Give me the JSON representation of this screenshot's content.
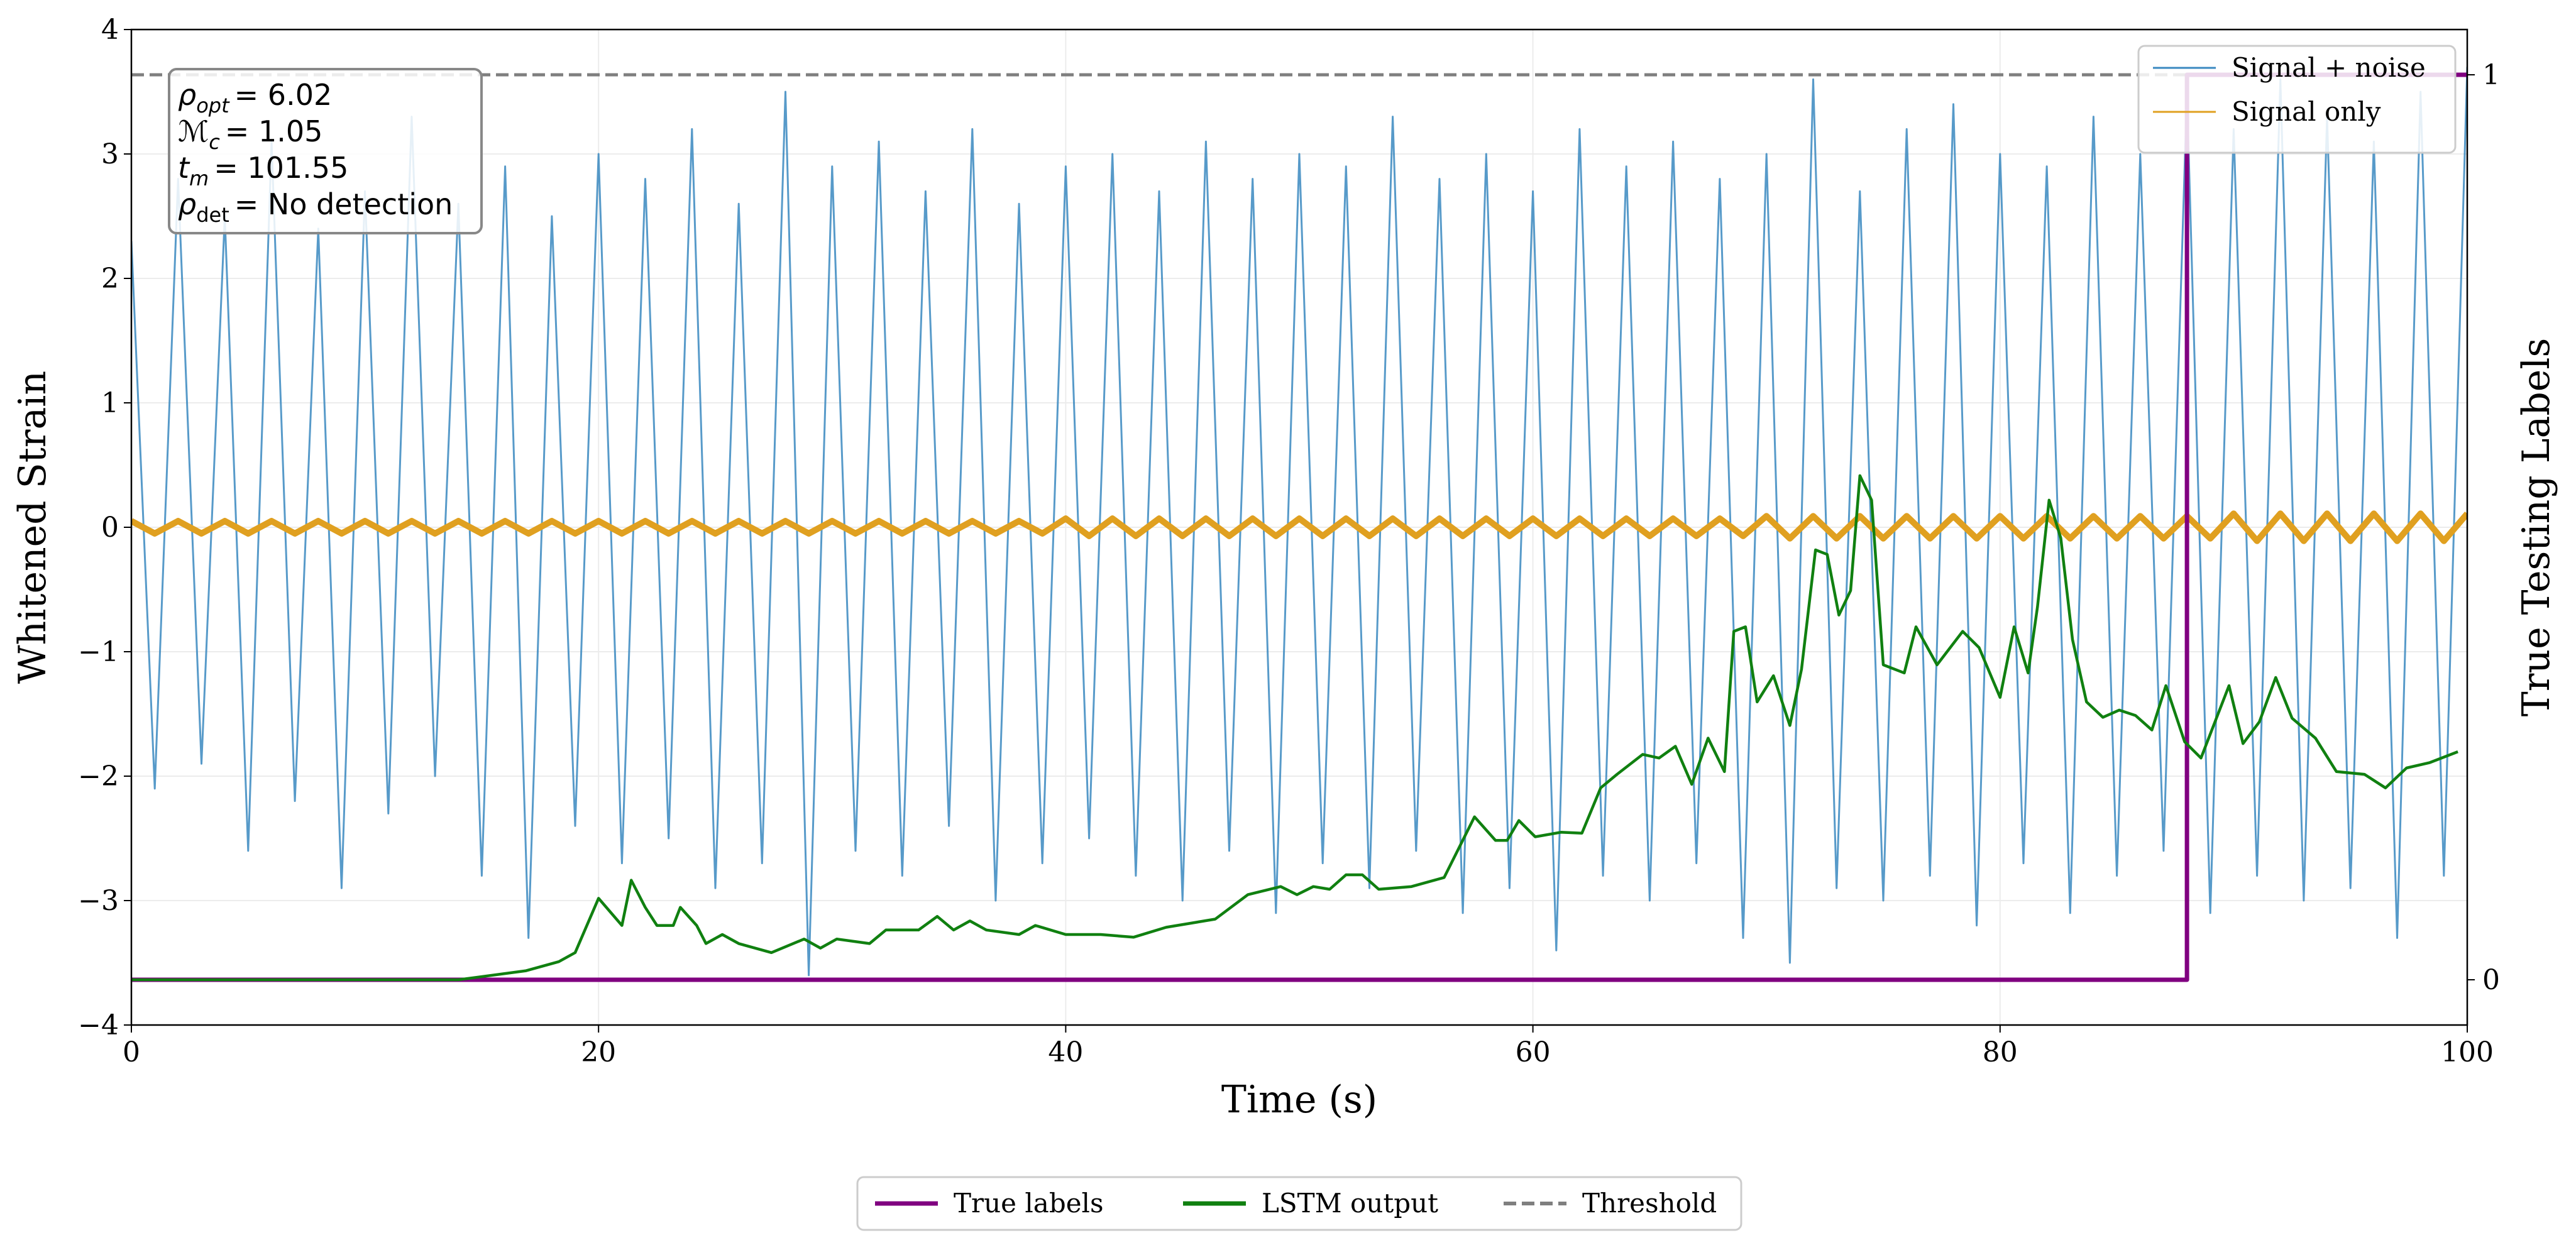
{
  "chart_data": {
    "type": "line",
    "x_label": "Time (s)",
    "y_label": "Whitened Strain",
    "y2_label": "True Testing Labels",
    "xlim": [
      0,
      100
    ],
    "xticks": [
      0,
      20,
      40,
      60,
      80,
      100
    ],
    "ylim": [
      -4,
      4
    ],
    "yticks": [
      {
        "value": -4,
        "label": "−4"
      },
      {
        "value": -3,
        "label": "−3"
      },
      {
        "value": -2,
        "label": "−2"
      },
      {
        "value": -1,
        "label": "−1"
      },
      0,
      1,
      2,
      3,
      4
    ],
    "y2lim": [
      -0.05,
      1.05
    ],
    "y2ticks": [
      0,
      1
    ],
    "grid": true,
    "annotations": [
      {
        "symbol": "ρ",
        "subscript": "opt",
        "text": "= 6.02"
      },
      {
        "symbol": "ℳ",
        "subscript": "c",
        "text": "= 1.05"
      },
      {
        "symbol": "t",
        "subscript": "m",
        "text": "= 101.55"
      },
      {
        "symbol": "ρ",
        "subscript": "det",
        "text": "= No detection"
      }
    ],
    "threshold": {
      "name": "Threshold",
      "value": 1,
      "color": "#7f7f7f",
      "axis": "y2",
      "legend": "lower center"
    },
    "series": [
      {
        "name": "Signal + noise",
        "color": "#3a88c0",
        "legend": "upper right",
        "x": [
          0,
          1,
          2,
          3,
          4,
          5,
          6,
          7,
          8,
          9,
          10,
          11,
          12,
          13,
          14,
          15,
          16,
          17,
          18,
          19,
          20,
          21,
          22,
          23,
          24,
          25,
          26,
          27,
          28,
          29,
          30,
          31,
          32,
          33,
          34,
          35,
          36,
          37,
          38,
          39,
          40,
          41,
          42,
          43,
          44,
          45,
          46,
          47,
          48,
          49,
          50,
          51,
          52,
          53,
          54,
          55,
          56,
          57,
          58,
          59,
          60,
          61,
          62,
          63,
          64,
          65,
          66,
          67,
          68,
          69,
          70,
          71,
          72,
          73,
          74,
          75,
          76,
          77,
          78,
          79,
          80,
          81,
          82,
          83,
          84,
          85,
          86,
          87,
          88,
          89,
          90,
          91,
          92,
          93,
          94,
          95,
          96,
          97,
          98,
          99,
          100
        ],
        "values": [
          2.3,
          -2.1,
          2.8,
          -1.9,
          2.5,
          -2.6,
          3.1,
          -2.2,
          2.4,
          -2.9,
          2.7,
          -2.3,
          3.3,
          -2.0,
          2.6,
          -2.8,
          2.9,
          -3.3,
          2.5,
          -2.4,
          3.0,
          -2.7,
          2.8,
          -2.5,
          3.2,
          -2.9,
          2.6,
          -2.7,
          3.5,
          -3.6,
          2.9,
          -2.6,
          3.1,
          -2.8,
          2.7,
          -2.4,
          3.2,
          -3.0,
          2.6,
          -2.7,
          2.9,
          -2.5,
          3.0,
          -2.8,
          2.7,
          -3.0,
          3.1,
          -2.6,
          2.8,
          -3.1,
          3.0,
          -2.7,
          2.9,
          -2.9,
          3.3,
          -2.6,
          2.8,
          -3.1,
          3.0,
          -2.9,
          2.7,
          -3.4,
          3.2,
          -2.8,
          2.9,
          -3.0,
          3.1,
          -2.7,
          2.8,
          -3.3,
          3.0,
          -3.5,
          3.6,
          -2.9,
          2.7,
          -3.0,
          3.2,
          -2.8,
          3.4,
          -3.2,
          3.0,
          -2.7,
          2.9,
          -3.1,
          3.3,
          -2.8,
          3.0,
          -2.6,
          3.5,
          -3.1,
          3.2,
          -2.8,
          3.6,
          -3.0,
          3.3,
          -2.9,
          3.1,
          -3.3,
          3.5,
          -2.8,
          3.7
        ]
      },
      {
        "name": "Signal only",
        "color": "#e0a020",
        "legend": "upper right",
        "x": [
          0,
          1,
          2,
          3,
          4,
          5,
          6,
          7,
          8,
          9,
          10,
          11,
          12,
          13,
          14,
          15,
          16,
          17,
          18,
          19,
          20,
          21,
          22,
          23,
          24,
          25,
          26,
          27,
          28,
          29,
          30,
          31,
          32,
          33,
          34,
          35,
          36,
          37,
          38,
          39,
          40,
          41,
          42,
          43,
          44,
          45,
          46,
          47,
          48,
          49,
          50,
          51,
          52,
          53,
          54,
          55,
          56,
          57,
          58,
          59,
          60,
          61,
          62,
          63,
          64,
          65,
          66,
          67,
          68,
          69,
          70,
          71,
          72,
          73,
          74,
          75,
          76,
          77,
          78,
          79,
          80,
          81,
          82,
          83,
          84,
          85,
          86,
          87,
          88,
          89,
          90,
          91,
          92,
          93,
          94,
          95,
          96,
          97,
          98,
          99,
          100
        ],
        "values": [
          0.05,
          -0.05,
          0.05,
          -0.05,
          0.05,
          -0.05,
          0.05,
          -0.05,
          0.05,
          -0.05,
          0.05,
          -0.05,
          0.05,
          -0.05,
          0.05,
          -0.05,
          0.05,
          -0.05,
          0.05,
          -0.05,
          0.05,
          -0.05,
          0.05,
          -0.05,
          0.05,
          -0.05,
          0.05,
          -0.05,
          0.05,
          -0.05,
          0.05,
          -0.05,
          0.05,
          -0.05,
          0.05,
          -0.05,
          0.05,
          -0.05,
          0.05,
          -0.05,
          0.07,
          -0.07,
          0.07,
          -0.07,
          0.07,
          -0.07,
          0.07,
          -0.07,
          0.07,
          -0.07,
          0.07,
          -0.07,
          0.07,
          -0.07,
          0.07,
          -0.07,
          0.07,
          -0.07,
          0.07,
          -0.07,
          0.07,
          -0.07,
          0.07,
          -0.07,
          0.07,
          -0.07,
          0.07,
          -0.07,
          0.07,
          -0.07,
          0.09,
          -0.09,
          0.09,
          -0.09,
          0.09,
          -0.09,
          0.09,
          -0.09,
          0.09,
          -0.09,
          0.09,
          -0.09,
          0.09,
          -0.09,
          0.09,
          -0.09,
          0.09,
          -0.09,
          0.09,
          -0.09,
          0.11,
          -0.11,
          0.11,
          -0.11,
          0.11,
          -0.11,
          0.11,
          -0.11,
          0.11,
          -0.11,
          0.11
        ]
      },
      {
        "name": "True labels",
        "color": "#800080",
        "axis": "y2",
        "legend": "lower center",
        "x": [
          0,
          88,
          88,
          100
        ],
        "values": [
          0,
          0,
          1,
          1
        ]
      },
      {
        "name": "LSTM output",
        "color": "#108010",
        "axis": "y2",
        "legend": "lower center",
        "x": [
          0,
          14,
          16.9,
          18.3,
          19,
          20,
          21,
          21.4,
          22,
          22.5,
          23.2,
          23.5,
          24.2,
          24.6,
          25.3,
          26,
          27.4,
          28.8,
          29.5,
          30.2,
          31.6,
          32.3,
          33.7,
          34.5,
          35.2,
          35.9,
          36.6,
          38,
          38.7,
          40,
          41.5,
          42.9,
          44.3,
          46.4,
          47.8,
          49.2,
          49.9,
          50.6,
          51.3,
          52,
          52.7,
          53.4,
          54.8,
          56.2,
          57.5,
          58.4,
          58.9,
          59.4,
          60.1,
          61.2,
          62.1,
          62.9,
          63.6,
          64.7,
          65.4,
          66.1,
          66.8,
          67.5,
          68.2,
          68.6,
          69.1,
          69.6,
          70.3,
          71,
          71.5,
          72.1,
          72.6,
          73.1,
          73.6,
          74,
          74.5,
          75,
          75.9,
          76.4,
          77.3,
          78.4,
          79.1,
          80,
          80.6,
          81.2,
          81.6,
          82.1,
          82.6,
          83.1,
          83.7,
          84.4,
          85.1,
          85.8,
          86.5,
          87.1,
          87.9,
          88.6,
          89.8,
          90.4,
          91.1,
          91.8,
          92.5,
          93.5,
          94.4,
          95.6,
          96.5,
          97.4,
          98.4,
          99.6
        ],
        "values": [
          0,
          0,
          0.01,
          0.02,
          0.03,
          0.09,
          0.06,
          0.11,
          0.08,
          0.06,
          0.06,
          0.08,
          0.06,
          0.04,
          0.05,
          0.04,
          0.03,
          0.045,
          0.035,
          0.045,
          0.04,
          0.055,
          0.055,
          0.07,
          0.055,
          0.065,
          0.055,
          0.05,
          0.06,
          0.05,
          0.05,
          0.047,
          0.058,
          0.067,
          0.094,
          0.103,
          0.094,
          0.103,
          0.1,
          0.116,
          0.116,
          0.1,
          0.103,
          0.113,
          0.18,
          0.154,
          0.154,
          0.176,
          0.158,
          0.163,
          0.162,
          0.212,
          0.227,
          0.249,
          0.245,
          0.258,
          0.216,
          0.267,
          0.23,
          0.385,
          0.39,
          0.307,
          0.336,
          0.281,
          0.343,
          0.475,
          0.47,
          0.403,
          0.43,
          0.557,
          0.53,
          0.348,
          0.339,
          0.39,
          0.348,
          0.385,
          0.367,
          0.312,
          0.39,
          0.339,
          0.412,
          0.53,
          0.488,
          0.376,
          0.307,
          0.29,
          0.298,
          0.292,
          0.276,
          0.325,
          0.263,
          0.245,
          0.325,
          0.261,
          0.285,
          0.334,
          0.289,
          0.267,
          0.23,
          0.227,
          0.212,
          0.234,
          0.24,
          0.252
        ]
      }
    ]
  }
}
